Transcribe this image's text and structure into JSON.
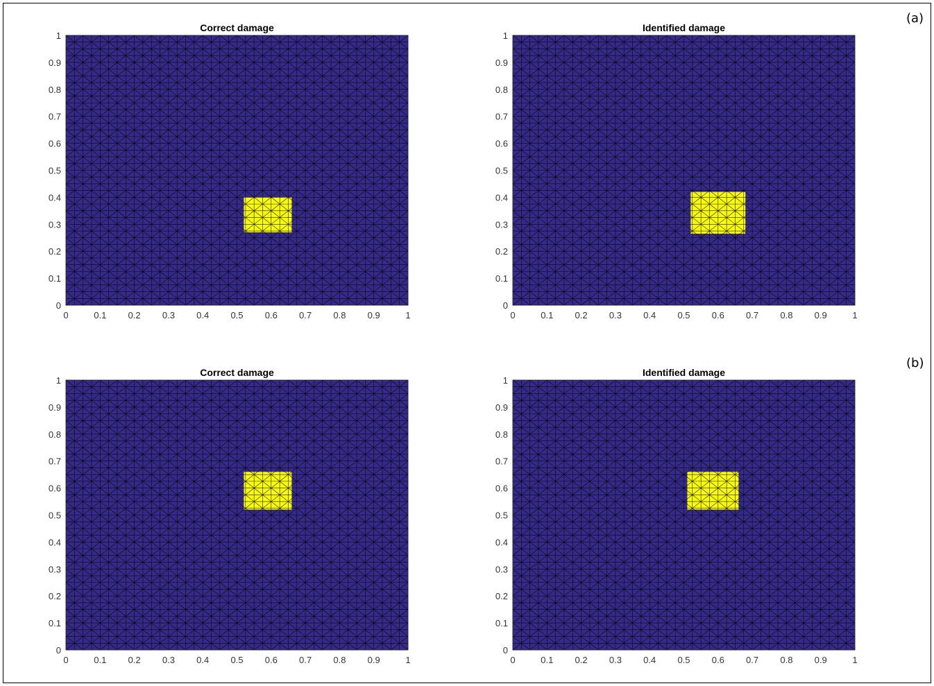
{
  "panel_labels": [
    "(a)",
    "(b)"
  ],
  "colors": {
    "undamaged": "#352a87",
    "damaged": "#f9fb0e",
    "mesh": "#000000"
  },
  "chart_data": [
    {
      "type": "heatmap",
      "panel": "(a)",
      "title": "Correct damage",
      "xlim": [
        0,
        1
      ],
      "ylim": [
        0,
        1
      ],
      "xticks": [
        "0",
        "0.1",
        "0.2",
        "0.3",
        "0.4",
        "0.5",
        "0.6",
        "0.7",
        "0.8",
        "0.9",
        "1"
      ],
      "yticks": [
        "0",
        "0.1",
        "0.2",
        "0.3",
        "0.4",
        "0.5",
        "0.6",
        "0.7",
        "0.8",
        "0.9",
        "1"
      ],
      "mesh_divisions": 40,
      "damaged_region": {
        "x": [
          0.52,
          0.66
        ],
        "y": [
          0.27,
          0.4
        ]
      },
      "legend": false
    },
    {
      "type": "heatmap",
      "panel": "(a)",
      "title": "Identified damage",
      "xlim": [
        0,
        1
      ],
      "ylim": [
        0,
        1
      ],
      "xticks": [
        "0",
        "0.1",
        "0.2",
        "0.3",
        "0.4",
        "0.5",
        "0.6",
        "0.7",
        "0.8",
        "0.9",
        "1"
      ],
      "yticks": [
        "0",
        "0.1",
        "0.2",
        "0.3",
        "0.4",
        "0.5",
        "0.6",
        "0.7",
        "0.8",
        "0.9",
        "1"
      ],
      "mesh_divisions": 40,
      "damaged_region": {
        "x": [
          0.52,
          0.68
        ],
        "y": [
          0.265,
          0.42
        ]
      },
      "legend": false
    },
    {
      "type": "heatmap",
      "panel": "(b)",
      "title": "Correct damage",
      "xlim": [
        0,
        1
      ],
      "ylim": [
        0,
        1
      ],
      "xticks": [
        "0",
        "0.1",
        "0.2",
        "0.3",
        "0.4",
        "0.5",
        "0.6",
        "0.7",
        "0.8",
        "0.9",
        "1"
      ],
      "yticks": [
        "0",
        "0.1",
        "0.2",
        "0.3",
        "0.4",
        "0.5",
        "0.6",
        "0.7",
        "0.8",
        "0.9",
        "1"
      ],
      "mesh_divisions": 40,
      "damaged_region": {
        "x": [
          0.52,
          0.66
        ],
        "y": [
          0.52,
          0.66
        ]
      },
      "legend": false
    },
    {
      "type": "heatmap",
      "panel": "(b)",
      "title": "Identified damage",
      "xlim": [
        0,
        1
      ],
      "ylim": [
        0,
        1
      ],
      "xticks": [
        "0",
        "0.1",
        "0.2",
        "0.3",
        "0.4",
        "0.5",
        "0.6",
        "0.7",
        "0.8",
        "0.9",
        "1"
      ],
      "yticks": [
        "0",
        "0.1",
        "0.2",
        "0.3",
        "0.4",
        "0.5",
        "0.6",
        "0.7",
        "0.8",
        "0.9",
        "1"
      ],
      "mesh_divisions": 40,
      "damaged_region": {
        "x": [
          0.51,
          0.66
        ],
        "y": [
          0.52,
          0.66
        ]
      },
      "legend": false
    }
  ]
}
